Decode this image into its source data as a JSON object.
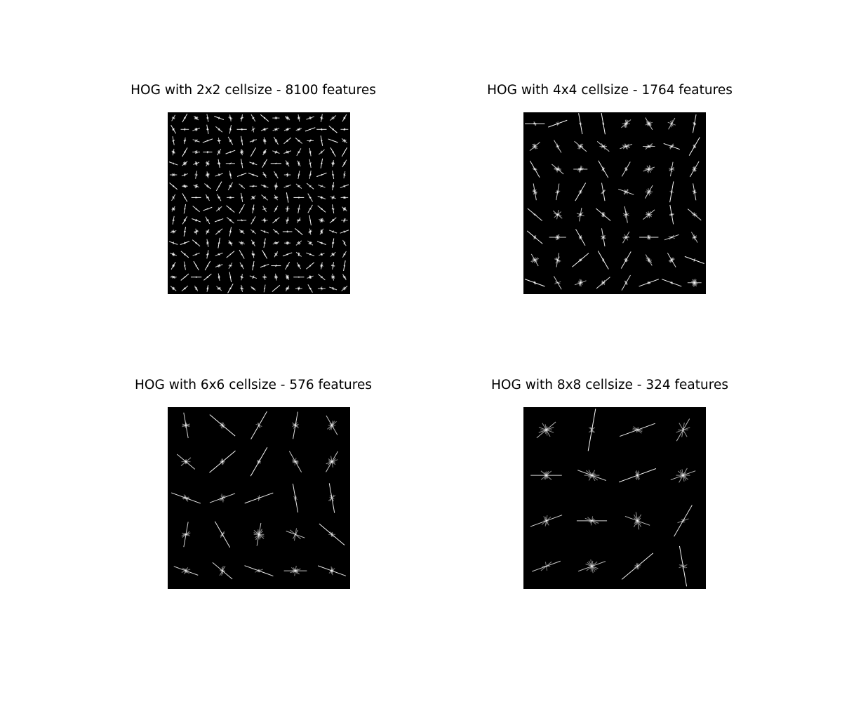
{
  "figure": {
    "background_color": "#ffffff",
    "panel_background_color": "#000000",
    "glyph_color": "#ffffff"
  },
  "panels": [
    {
      "title": "HOG with 2x2 cellsize - 8100 features",
      "cell_size": 2,
      "grid": 16,
      "features": 8100
    },
    {
      "title": "HOG with 4x4 cellsize - 1764 features",
      "cell_size": 4,
      "grid": 8,
      "features": 1764
    },
    {
      "title": "HOG with 6x6 cellsize - 576 features",
      "cell_size": 6,
      "grid": 5,
      "features": 576
    },
    {
      "title": "HOG with 8x8 cellsize - 324 features",
      "cell_size": 8,
      "grid": 4,
      "features": 324
    }
  ]
}
